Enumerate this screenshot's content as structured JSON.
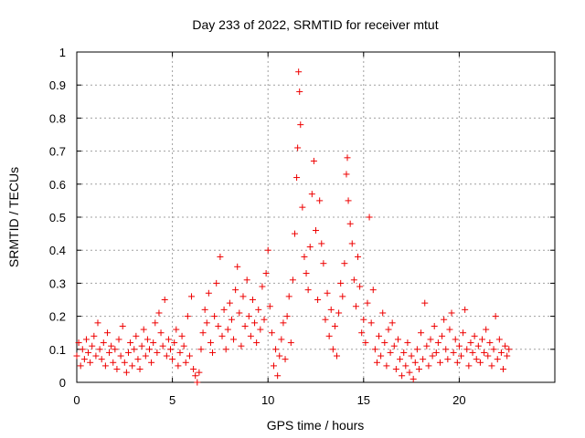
{
  "chart_data": {
    "type": "scatter",
    "title": "Day 233 of 2022, SRMTID for receiver mtut",
    "xlabel": "GPS time / hours",
    "ylabel": "SRMTID / TECUs",
    "xlim": [
      0,
      25
    ],
    "ylim": [
      0,
      1
    ],
    "xticks": [
      "0",
      "5",
      "10",
      "15",
      "20"
    ],
    "yticks": [
      "0",
      "0.1",
      "0.2",
      "0.3",
      "0.4",
      "0.5",
      "0.6",
      "0.7",
      "0.8",
      "0.9",
      "1"
    ],
    "grid": true,
    "marker": "+",
    "marker_color": "#ee0000",
    "series": [
      {
        "name": "SRMTID",
        "points": [
          [
            0.0,
            0.08
          ],
          [
            0.1,
            0.12
          ],
          [
            0.2,
            0.05
          ],
          [
            0.3,
            0.1
          ],
          [
            0.4,
            0.07
          ],
          [
            0.5,
            0.13
          ],
          [
            0.6,
            0.09
          ],
          [
            0.7,
            0.06
          ],
          [
            0.8,
            0.11
          ],
          [
            0.9,
            0.14
          ],
          [
            1.0,
            0.08
          ],
          [
            1.1,
            0.18
          ],
          [
            1.2,
            0.1
          ],
          [
            1.3,
            0.07
          ],
          [
            1.4,
            0.12
          ],
          [
            1.5,
            0.05
          ],
          [
            1.6,
            0.15
          ],
          [
            1.7,
            0.09
          ],
          [
            1.8,
            0.11
          ],
          [
            1.9,
            0.06
          ],
          [
            2.0,
            0.1
          ],
          [
            2.1,
            0.04
          ],
          [
            2.2,
            0.13
          ],
          [
            2.3,
            0.08
          ],
          [
            2.4,
            0.17
          ],
          [
            2.5,
            0.06
          ],
          [
            2.6,
            0.03
          ],
          [
            2.7,
            0.09
          ],
          [
            2.8,
            0.12
          ],
          [
            2.9,
            0.05
          ],
          [
            3.0,
            0.1
          ],
          [
            3.1,
            0.14
          ],
          [
            3.2,
            0.07
          ],
          [
            3.3,
            0.04
          ],
          [
            3.4,
            0.11
          ],
          [
            3.5,
            0.16
          ],
          [
            3.6,
            0.08
          ],
          [
            3.7,
            0.13
          ],
          [
            3.8,
            0.1
          ],
          [
            3.9,
            0.06
          ],
          [
            4.0,
            0.12
          ],
          [
            4.1,
            0.18
          ],
          [
            4.2,
            0.09
          ],
          [
            4.3,
            0.21
          ],
          [
            4.4,
            0.15
          ],
          [
            4.5,
            0.11
          ],
          [
            4.6,
            0.25
          ],
          [
            4.7,
            0.08
          ],
          [
            4.8,
            0.13
          ],
          [
            4.9,
            0.1
          ],
          [
            5.0,
            0.07
          ],
          [
            5.1,
            0.12
          ],
          [
            5.2,
            0.16
          ],
          [
            5.3,
            0.05
          ],
          [
            5.4,
            0.09
          ],
          [
            5.5,
            0.14
          ],
          [
            5.6,
            0.11
          ],
          [
            5.7,
            0.06
          ],
          [
            5.8,
            0.2
          ],
          [
            5.9,
            0.08
          ],
          [
            6.0,
            0.26
          ],
          [
            6.1,
            0.04
          ],
          [
            6.2,
            0.02
          ],
          [
            6.3,
            0.0
          ],
          [
            6.4,
            0.03
          ],
          [
            6.5,
            0.1
          ],
          [
            6.6,
            0.15
          ],
          [
            6.7,
            0.22
          ],
          [
            6.8,
            0.18
          ],
          [
            6.9,
            0.27
          ],
          [
            7.0,
            0.12
          ],
          [
            7.1,
            0.09
          ],
          [
            7.2,
            0.2
          ],
          [
            7.3,
            0.3
          ],
          [
            7.4,
            0.17
          ],
          [
            7.5,
            0.38
          ],
          [
            7.6,
            0.14
          ],
          [
            7.7,
            0.22
          ],
          [
            7.8,
            0.1
          ],
          [
            7.9,
            0.16
          ],
          [
            8.0,
            0.24
          ],
          [
            8.1,
            0.19
          ],
          [
            8.2,
            0.13
          ],
          [
            8.3,
            0.28
          ],
          [
            8.4,
            0.35
          ],
          [
            8.5,
            0.21
          ],
          [
            8.6,
            0.11
          ],
          [
            8.7,
            0.26
          ],
          [
            8.8,
            0.17
          ],
          [
            8.9,
            0.31
          ],
          [
            9.0,
            0.2
          ],
          [
            9.1,
            0.14
          ],
          [
            9.2,
            0.25
          ],
          [
            9.3,
            0.18
          ],
          [
            9.4,
            0.12
          ],
          [
            9.5,
            0.22
          ],
          [
            9.6,
            0.16
          ],
          [
            9.7,
            0.29
          ],
          [
            9.8,
            0.19
          ],
          [
            9.9,
            0.33
          ],
          [
            10.0,
            0.4
          ],
          [
            10.1,
            0.23
          ],
          [
            10.2,
            0.15
          ],
          [
            10.3,
            0.05
          ],
          [
            10.4,
            0.1
          ],
          [
            10.5,
            0.02
          ],
          [
            10.6,
            0.08
          ],
          [
            10.7,
            0.13
          ],
          [
            10.8,
            0.18
          ],
          [
            10.9,
            0.07
          ],
          [
            11.0,
            0.2
          ],
          [
            11.1,
            0.26
          ],
          [
            11.2,
            0.12
          ],
          [
            11.3,
            0.31
          ],
          [
            11.4,
            0.45
          ],
          [
            11.5,
            0.62
          ],
          [
            11.55,
            0.71
          ],
          [
            11.6,
            0.94
          ],
          [
            11.65,
            0.88
          ],
          [
            11.7,
            0.78
          ],
          [
            11.8,
            0.53
          ],
          [
            11.9,
            0.38
          ],
          [
            12.0,
            0.33
          ],
          [
            12.1,
            0.28
          ],
          [
            12.2,
            0.41
          ],
          [
            12.3,
            0.57
          ],
          [
            12.4,
            0.67
          ],
          [
            12.5,
            0.46
          ],
          [
            12.6,
            0.25
          ],
          [
            12.7,
            0.55
          ],
          [
            12.8,
            0.42
          ],
          [
            12.9,
            0.36
          ],
          [
            13.0,
            0.19
          ],
          [
            13.1,
            0.27
          ],
          [
            13.2,
            0.14
          ],
          [
            13.3,
            0.22
          ],
          [
            13.4,
            0.1
          ],
          [
            13.5,
            0.17
          ],
          [
            13.6,
            0.08
          ],
          [
            13.7,
            0.21
          ],
          [
            13.8,
            0.3
          ],
          [
            13.9,
            0.26
          ],
          [
            14.0,
            0.36
          ],
          [
            14.1,
            0.63
          ],
          [
            14.15,
            0.68
          ],
          [
            14.2,
            0.55
          ],
          [
            14.3,
            0.48
          ],
          [
            14.4,
            0.42
          ],
          [
            14.5,
            0.31
          ],
          [
            14.6,
            0.23
          ],
          [
            14.7,
            0.38
          ],
          [
            14.8,
            0.29
          ],
          [
            14.9,
            0.15
          ],
          [
            15.0,
            0.19
          ],
          [
            15.1,
            0.12
          ],
          [
            15.2,
            0.24
          ],
          [
            15.3,
            0.5
          ],
          [
            15.4,
            0.18
          ],
          [
            15.5,
            0.28
          ],
          [
            15.6,
            0.1
          ],
          [
            15.7,
            0.06
          ],
          [
            15.8,
            0.14
          ],
          [
            15.9,
            0.08
          ],
          [
            16.0,
            0.21
          ],
          [
            16.1,
            0.12
          ],
          [
            16.2,
            0.05
          ],
          [
            16.3,
            0.16
          ],
          [
            16.4,
            0.09
          ],
          [
            16.5,
            0.18
          ],
          [
            16.6,
            0.11
          ],
          [
            16.7,
            0.04
          ],
          [
            16.8,
            0.13
          ],
          [
            16.9,
            0.07
          ],
          [
            17.0,
            0.02
          ],
          [
            17.1,
            0.09
          ],
          [
            17.2,
            0.05
          ],
          [
            17.3,
            0.12
          ],
          [
            17.4,
            0.03
          ],
          [
            17.5,
            0.08
          ],
          [
            17.6,
            0.01
          ],
          [
            17.7,
            0.06
          ],
          [
            17.8,
            0.1
          ],
          [
            17.9,
            0.04
          ],
          [
            18.0,
            0.15
          ],
          [
            18.1,
            0.07
          ],
          [
            18.2,
            0.24
          ],
          [
            18.3,
            0.11
          ],
          [
            18.4,
            0.05
          ],
          [
            18.5,
            0.13
          ],
          [
            18.6,
            0.08
          ],
          [
            18.7,
            0.17
          ],
          [
            18.8,
            0.09
          ],
          [
            18.9,
            0.12
          ],
          [
            19.0,
            0.06
          ],
          [
            19.1,
            0.14
          ],
          [
            19.2,
            0.19
          ],
          [
            19.3,
            0.1
          ],
          [
            19.4,
            0.07
          ],
          [
            19.5,
            0.16
          ],
          [
            19.6,
            0.21
          ],
          [
            19.7,
            0.09
          ],
          [
            19.8,
            0.13
          ],
          [
            19.9,
            0.06
          ],
          [
            20.0,
            0.11
          ],
          [
            20.1,
            0.08
          ],
          [
            20.2,
            0.15
          ],
          [
            20.3,
            0.22
          ],
          [
            20.4,
            0.1
          ],
          [
            20.5,
            0.05
          ],
          [
            20.6,
            0.12
          ],
          [
            20.7,
            0.09
          ],
          [
            20.8,
            0.14
          ],
          [
            20.9,
            0.07
          ],
          [
            21.0,
            0.11
          ],
          [
            21.1,
            0.06
          ],
          [
            21.2,
            0.13
          ],
          [
            21.3,
            0.09
          ],
          [
            21.4,
            0.16
          ],
          [
            21.5,
            0.08
          ],
          [
            21.6,
            0.12
          ],
          [
            21.7,
            0.05
          ],
          [
            21.8,
            0.1
          ],
          [
            21.9,
            0.2
          ],
          [
            22.0,
            0.07
          ],
          [
            22.1,
            0.13
          ],
          [
            22.2,
            0.09
          ],
          [
            22.3,
            0.04
          ],
          [
            22.4,
            0.11
          ],
          [
            22.5,
            0.08
          ],
          [
            22.6,
            0.1
          ]
        ]
      }
    ]
  }
}
